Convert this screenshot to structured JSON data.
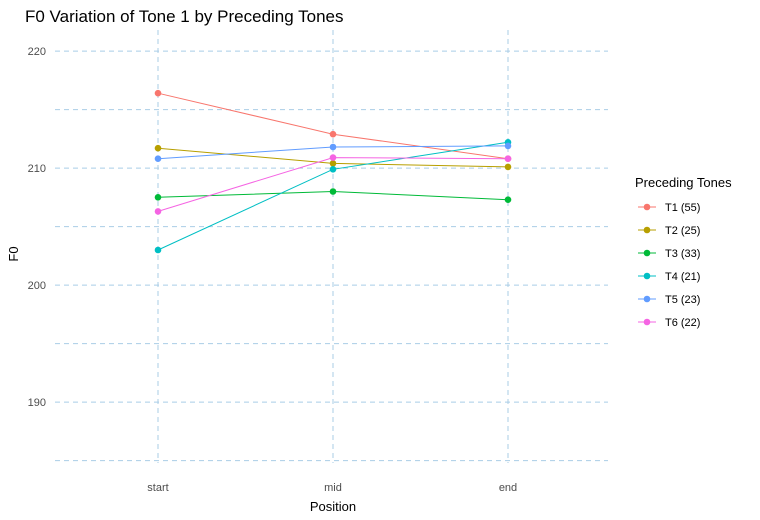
{
  "chart_data": {
    "type": "line",
    "title": "F0 Variation of Tone 1 by Preceding Tones",
    "xlabel": "Position",
    "ylabel": "F0",
    "categories": [
      "start",
      "mid",
      "end"
    ],
    "y_ticks": [
      "190",
      "200",
      "210",
      "220"
    ],
    "ylim": [
      184.8,
      221.8
    ],
    "grid": true,
    "grid_color": "#a9cde6",
    "legend": {
      "title": "Preceding Tones",
      "position": "right"
    },
    "series": [
      {
        "name": "T1 (55)",
        "color": "#f8766d",
        "values": [
          216.4,
          212.9,
          210.8
        ]
      },
      {
        "name": "T2 (25)",
        "color": "#b79f00",
        "values": [
          211.7,
          210.4,
          210.1
        ]
      },
      {
        "name": "T3 (33)",
        "color": "#00ba38",
        "values": [
          207.5,
          208.0,
          207.3
        ]
      },
      {
        "name": "T4 (21)",
        "color": "#00bfc4",
        "values": [
          203.0,
          209.9,
          212.2
        ]
      },
      {
        "name": "T5 (23)",
        "color": "#619cff",
        "values": [
          210.8,
          211.8,
          211.9
        ]
      },
      {
        "name": "T6 (22)",
        "color": "#f564e3",
        "values": [
          206.3,
          210.9,
          210.8
        ]
      }
    ]
  }
}
